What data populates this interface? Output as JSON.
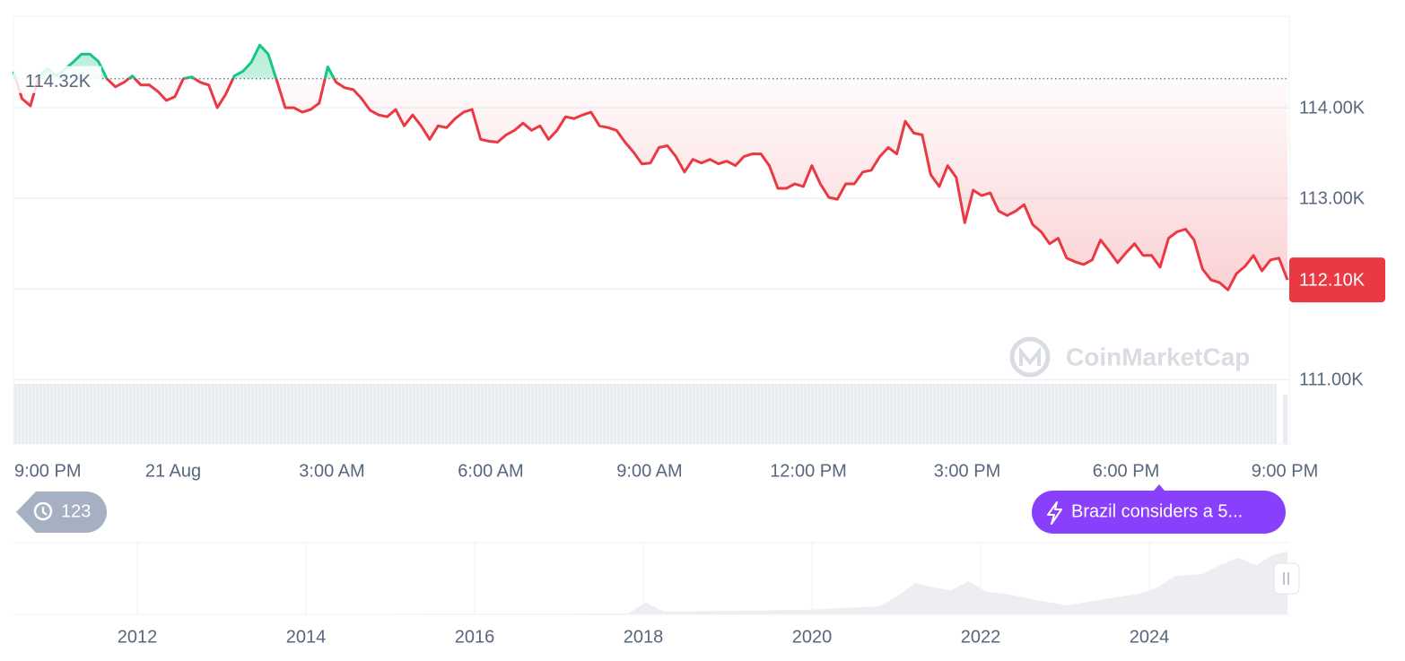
{
  "chart_data": {
    "type": "line",
    "values": [
      114400,
      114100,
      114020,
      114350,
      114430,
      114350,
      114420,
      114500,
      114590,
      114590,
      114510,
      114320,
      114230,
      114280,
      114350,
      114250,
      114250,
      114180,
      114080,
      114120,
      114320,
      114340,
      114280,
      114250,
      114000,
      114150,
      114350,
      114400,
      114500,
      114690,
      114590,
      114300,
      114000,
      114000,
      113950,
      113980,
      114050,
      114450,
      114280,
      114220,
      114200,
      114100,
      113970,
      113920,
      113900,
      113980,
      113800,
      113920,
      113800,
      113650,
      113800,
      113780,
      113880,
      113950,
      113980,
      113650,
      113630,
      113620,
      113700,
      113750,
      113830,
      113750,
      113800,
      113650,
      113750,
      113900,
      113880,
      113920,
      113950,
      113800,
      113780,
      113750,
      113620,
      113510,
      113380,
      113390,
      113560,
      113580,
      113460,
      113290,
      113430,
      113390,
      113430,
      113380,
      113410,
      113360,
      113460,
      113490,
      113490,
      113360,
      113110,
      113110,
      113160,
      113130,
      113360,
      113160,
      113010,
      112990,
      113160,
      113160,
      113290,
      113310,
      113460,
      113560,
      113490,
      113850,
      113720,
      113700,
      113260,
      113130,
      113360,
      113230,
      112730,
      113090,
      113030,
      113060,
      112860,
      112810,
      112860,
      112930,
      112710,
      112630,
      112500,
      112560,
      112340,
      112300,
      112270,
      112320,
      112540,
      112420,
      112290,
      112400,
      112500,
      112370,
      112370,
      112240,
      112560,
      112630,
      112660,
      112540,
      112220,
      112100,
      112070,
      111990,
      112170,
      112250,
      112370,
      112200,
      112320,
      112340,
      112100
    ],
    "color_up": "#16c784",
    "color_down": "#ea3943",
    "reference": {
      "value": 114320,
      "label": "114.32K"
    },
    "last_price": {
      "value": 112100,
      "label": "112.10K"
    },
    "ylim": [
      110290,
      115010
    ],
    "yticks": [
      {
        "value": 111000,
        "label": "111.00K"
      },
      {
        "value": 112000,
        "label": null
      },
      {
        "value": 113000,
        "label": "113.00K"
      },
      {
        "value": 114000,
        "label": "114.00K"
      }
    ],
    "grid": true,
    "x_tick_labels": [
      "9:00 PM",
      "21 Aug",
      "3:00 AM",
      "6:00 AM",
      "9:00 AM",
      "12:00 PM",
      "3:00 PM",
      "6:00 PM",
      "9:00 PM"
    ],
    "watermark": "CoinMarketCap"
  },
  "navigator": {
    "x_labels": [
      "2012",
      "2014",
      "2016",
      "2018",
      "2020",
      "2022",
      "2024"
    ]
  },
  "history_count": 123,
  "news_pill": "Brazil considers a 5..."
}
